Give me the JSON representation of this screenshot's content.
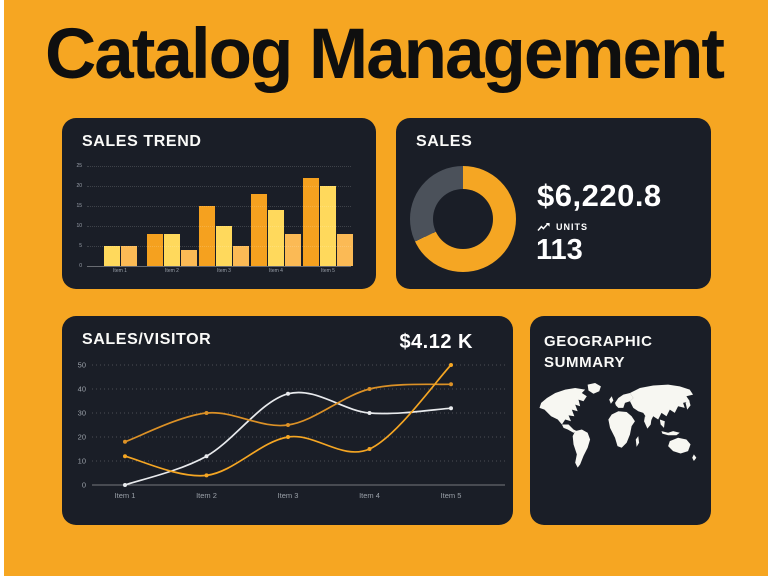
{
  "page": {
    "title": "Catalog Management",
    "background_color": "#F6A622",
    "panel_color": "#1A1E27",
    "accent_orange": "#F5A623"
  },
  "sales_trend": {
    "title": "SALES TREND"
  },
  "sales": {
    "title": "SALES",
    "amount": "$6,220.8",
    "units_label": "UNITS",
    "units_value": "113"
  },
  "sales_visitor": {
    "title": "SALES/VISITOR",
    "value": "$4.12 K"
  },
  "geographic": {
    "title_line1": "GEOGRAPHIC",
    "title_line2": "SUMMARY"
  },
  "chart_data": [
    {
      "name": "sales_trend",
      "type": "bar",
      "title": "SALES TREND",
      "categories": [
        "Item 1",
        "Item 2",
        "Item 3",
        "Item 4",
        "Item 5"
      ],
      "series": [
        {
          "name": "series-1",
          "color": "#F5A11F",
          "values": [
            0,
            8,
            15,
            18,
            22
          ]
        },
        {
          "name": "series-2",
          "color": "#FFD95C",
          "values": [
            5,
            8,
            10,
            14,
            20
          ]
        },
        {
          "name": "series-3",
          "color": "#FBBA55",
          "values": [
            5,
            4,
            5,
            8,
            8
          ]
        }
      ],
      "yticks": [
        0,
        5,
        10,
        15,
        20,
        25
      ],
      "ylim": [
        0,
        25
      ],
      "grid": "dotted horizontal"
    },
    {
      "name": "sales",
      "type": "pie",
      "title": "SALES",
      "style": "donut",
      "segments": [
        {
          "label": "sales",
          "value": 68,
          "color": "#F5A623"
        },
        {
          "label": "remainder",
          "value": 32,
          "color": "#4B515A"
        }
      ],
      "center_text": "",
      "kpi_amount": "$6,220.8",
      "kpi_units": 113
    },
    {
      "name": "sales_visitor",
      "type": "line",
      "title": "SALES/VISITOR",
      "kpi_value": "$4.12 K",
      "x": [
        "Item 1",
        "Item 2",
        "Item 3",
        "Item 4",
        "Item 5"
      ],
      "series": [
        {
          "name": "white-line",
          "color": "#E8EAED",
          "values": [
            0,
            12,
            38,
            30,
            32
          ]
        },
        {
          "name": "orange-line-1",
          "color": "#DC9126",
          "values": [
            18,
            30,
            25,
            40,
            42
          ]
        },
        {
          "name": "orange-line-2",
          "color": "#F5A623",
          "values": [
            12,
            4,
            20,
            15,
            50
          ]
        }
      ],
      "yticks": [
        0,
        10,
        20,
        30,
        40,
        50
      ],
      "ylim": [
        0,
        50
      ],
      "grid": "dotted horizontal",
      "curve": "smooth"
    }
  ]
}
